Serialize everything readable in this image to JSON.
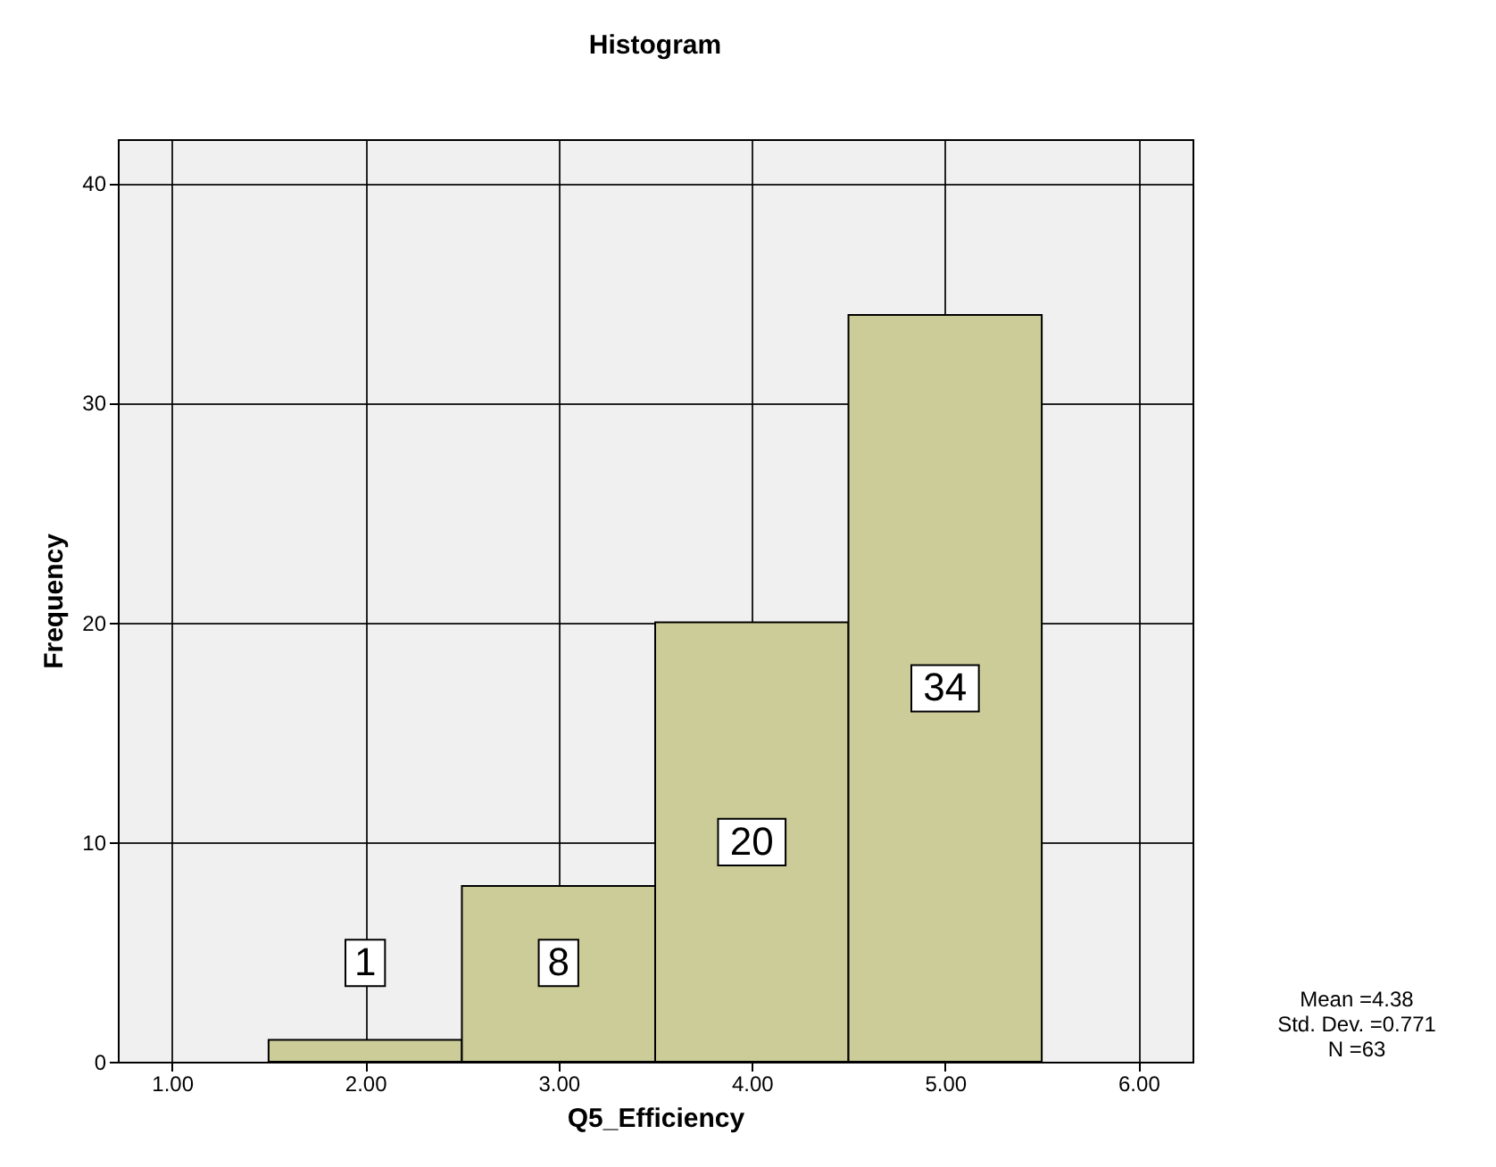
{
  "chart_data": {
    "type": "histogram",
    "title": "Histogram",
    "xlabel": "Q5_Efficiency",
    "ylabel": "Frequency",
    "bins": [
      1.5,
      2.5,
      3.5,
      4.5,
      5.5
    ],
    "values": [
      1,
      8,
      20,
      34
    ],
    "color": "#cccc99",
    "data_labels": true,
    "xlim": [
      0.72,
      6.28
    ],
    "xticks": [
      {
        "value": 1,
        "label": "1.00"
      },
      {
        "value": 2,
        "label": "2.00"
      },
      {
        "value": 3,
        "label": "3.00"
      },
      {
        "value": 4,
        "label": "4.00"
      },
      {
        "value": 5,
        "label": "5.00"
      },
      {
        "value": 6,
        "label": "6.00"
      }
    ],
    "ylim": [
      0,
      42
    ],
    "yticks": [
      0,
      10,
      20,
      30,
      40
    ],
    "grid": true,
    "annotations": [
      "Mean =4.38",
      "Std. Dev. =0.771",
      "N =63"
    ]
  }
}
